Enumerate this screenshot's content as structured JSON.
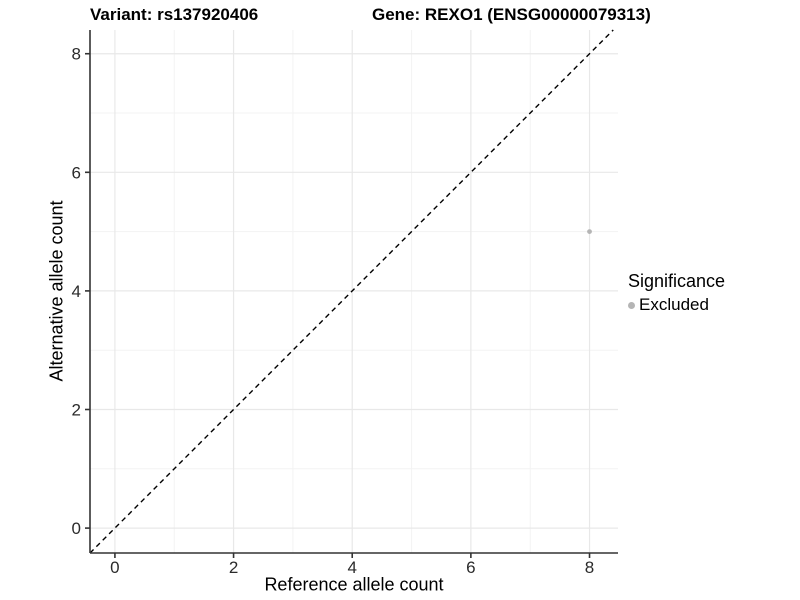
{
  "chart_data": {
    "type": "scatter",
    "title_left": "Variant: rs137920406",
    "title_right": "Gene: REXO1 (ENSG00000079313)",
    "xlabel": "Reference allele count",
    "ylabel": "Alternative allele count",
    "xlim": [
      -0.42,
      8.48
    ],
    "ylim": [
      -0.42,
      8.4
    ],
    "x_breaks": [
      0,
      2,
      4,
      6,
      8
    ],
    "y_breaks": [
      0,
      2,
      4,
      6,
      8
    ],
    "x_minor_breaks": [
      1,
      3,
      5,
      7
    ],
    "y_minor_breaks": [
      1,
      3,
      5,
      7
    ],
    "grid": true,
    "points": [
      {
        "x": 8,
        "y": 5,
        "significance": "Excluded"
      }
    ],
    "reference_line": {
      "equation": "y = x",
      "style": "dashed"
    },
    "legend": {
      "title": "Significance",
      "position": "right",
      "items": [
        {
          "label": "Excluded",
          "color": "#b5b5b5"
        }
      ]
    }
  },
  "colors": {
    "background": "#ffffff",
    "grid_major": "#e8e8e8",
    "grid_minor": "#f3f3f3",
    "axis_line": "#333333",
    "tick_text": "#2b2b2b",
    "title_text": "#000000",
    "point": "#b5b5b5",
    "reference_line": "#000000"
  }
}
